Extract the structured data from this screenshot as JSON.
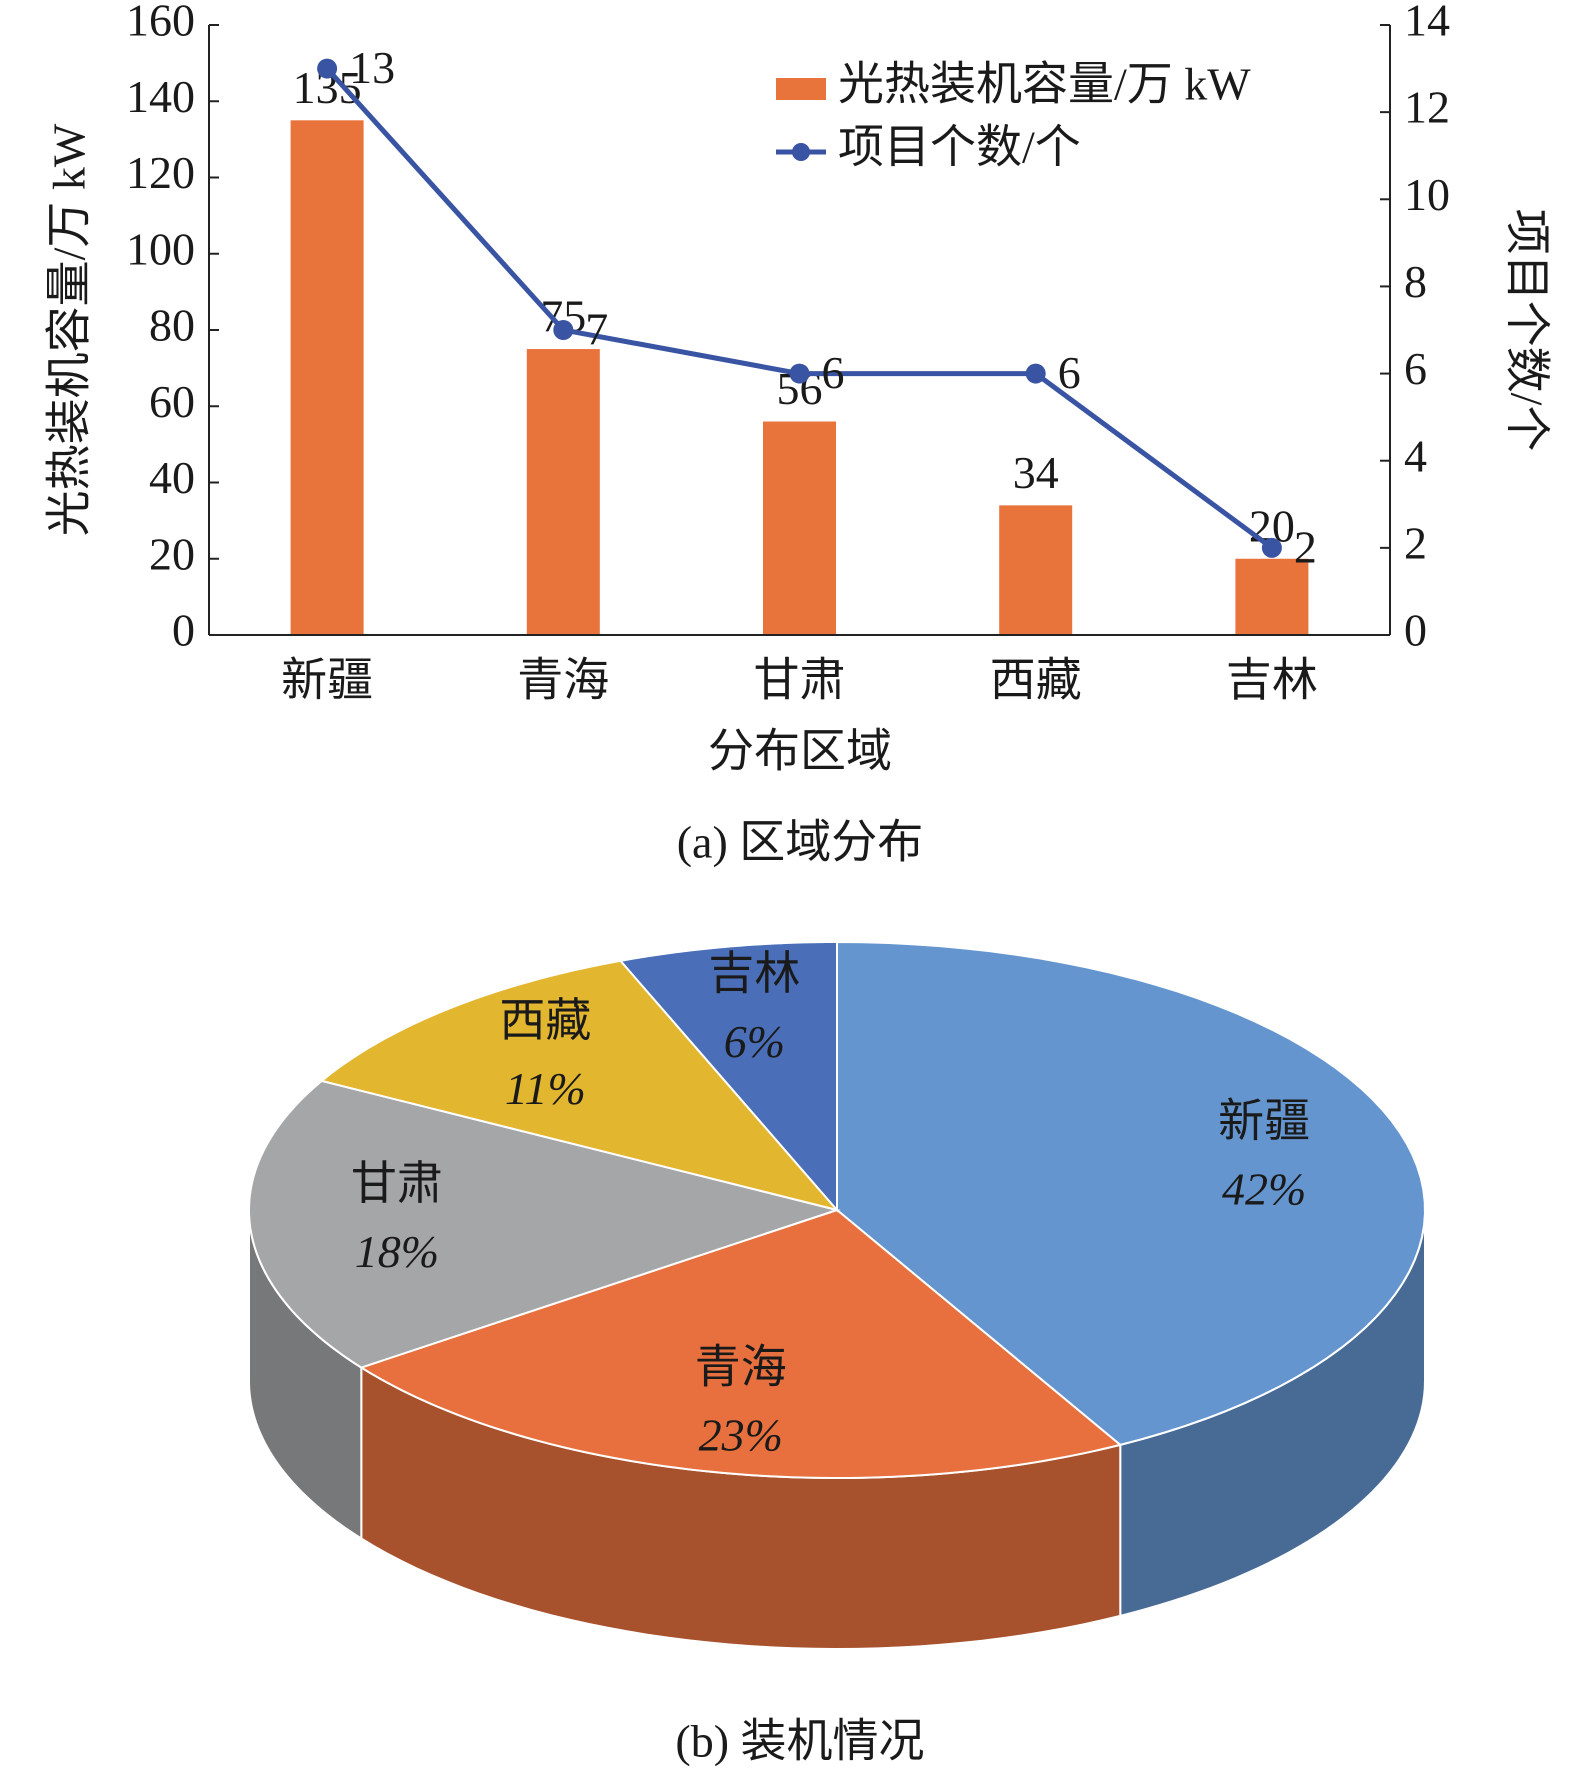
{
  "chart_data": [
    {
      "type": "bar",
      "caption": "(a) 区域分布",
      "xlabel": "分布区域",
      "ylabel": "光热装机容量/万 kW",
      "y2label": "项目个数/个",
      "categories": [
        "新疆",
        "青海",
        "甘肃",
        "西藏",
        "吉林"
      ],
      "series": [
        {
          "name": "光热装机容量/万 kW",
          "color": "#e8743b",
          "type": "bar",
          "values": [
            135,
            75,
            56,
            34,
            20
          ]
        },
        {
          "name": "项目个数/个",
          "color": "#3a54a4",
          "type": "line",
          "axis": "y2",
          "values": [
            13,
            7,
            6,
            6,
            2
          ]
        }
      ],
      "ylim": [
        0,
        160
      ],
      "yticks": [
        0,
        20,
        40,
        60,
        80,
        100,
        120,
        140,
        160
      ],
      "y2lim": [
        0,
        14
      ],
      "y2ticks": [
        0,
        2,
        4,
        6,
        8,
        10,
        12,
        14
      ],
      "legend": "upper right"
    },
    {
      "type": "pie",
      "caption": "(b) 装机情况",
      "categories": [
        "新疆",
        "青海",
        "甘肃",
        "西藏",
        "吉林"
      ],
      "values": [
        42,
        23,
        18,
        11,
        6
      ],
      "value_labels": [
        "42%",
        "23%",
        "18%",
        "11%",
        "6%"
      ],
      "colors": [
        "#6495cf",
        "#e8703e",
        "#a5a6a8",
        "#e3b62f",
        "#4a6fb8"
      ]
    }
  ]
}
